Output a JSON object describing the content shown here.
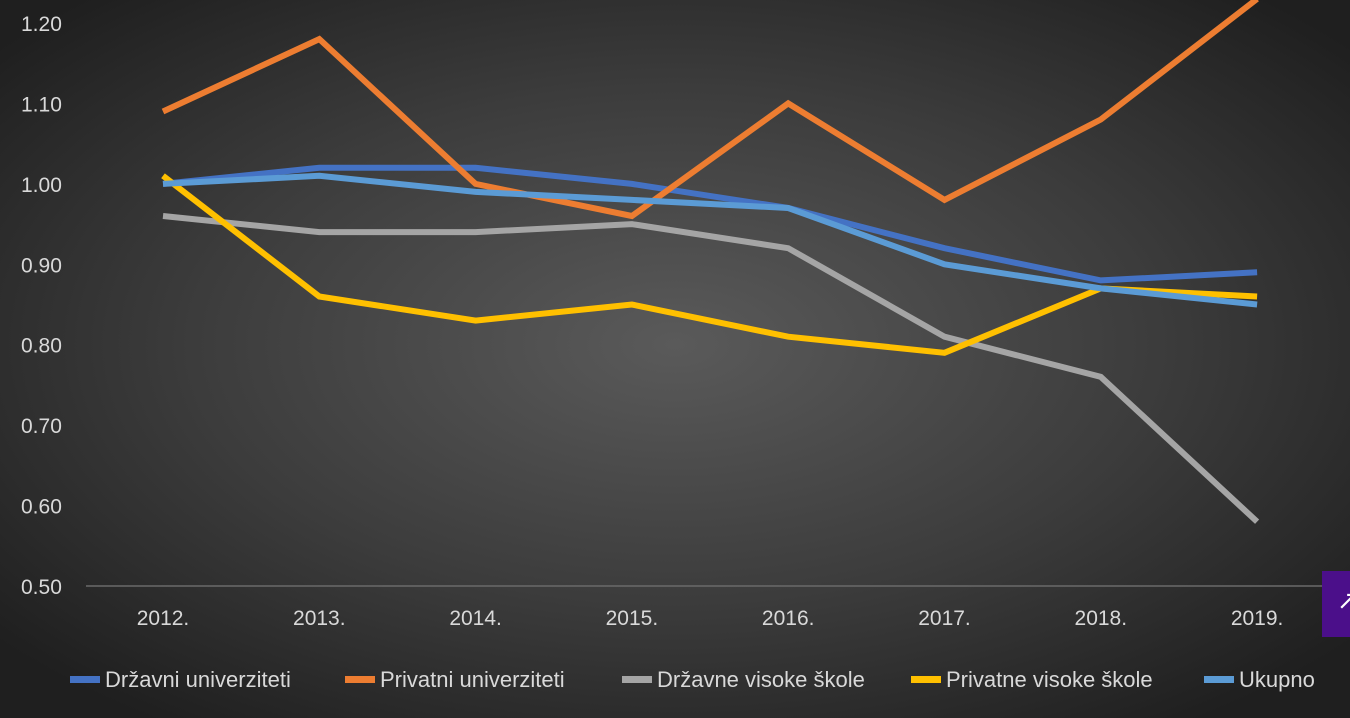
{
  "chart_data": {
    "type": "line",
    "title": "",
    "xlabel": "",
    "ylabel": "",
    "categories": [
      "2012.",
      "2013.",
      "2014.",
      "2015.",
      "2016.",
      "2017.",
      "2018.",
      "2019."
    ],
    "ylim": [
      0.5,
      1.2
    ],
    "yticks": [
      "1.20",
      "1.10",
      "1.00",
      "0.90",
      "0.80",
      "0.70",
      "0.60",
      "0.50"
    ],
    "ytick_values": [
      1.2,
      1.1,
      1.0,
      0.9,
      0.8,
      0.7,
      0.6,
      0.5
    ],
    "grid": false,
    "legend_position": "bottom",
    "series": [
      {
        "name": "Državni univerziteti",
        "color": "#4472c4",
        "values": [
          1.0,
          1.02,
          1.02,
          1.0,
          0.97,
          0.92,
          0.88,
          0.89
        ]
      },
      {
        "name": "Privatni univerziteti",
        "color": "#ed7d31",
        "values": [
          1.09,
          1.18,
          1.0,
          0.96,
          1.1,
          0.98,
          1.08,
          1.23
        ]
      },
      {
        "name": "Državne visoke škole",
        "color": "#a5a5a5",
        "values": [
          0.96,
          0.94,
          0.94,
          0.95,
          0.92,
          0.81,
          0.76,
          0.58
        ]
      },
      {
        "name": "Privatne visoke škole",
        "color": "#ffc000",
        "values": [
          1.01,
          0.86,
          0.83,
          0.85,
          0.81,
          0.79,
          0.87,
          0.86
        ]
      },
      {
        "name": "Ukupno",
        "color": "#5b9bd5",
        "values": [
          1.0,
          1.01,
          0.99,
          0.98,
          0.97,
          0.9,
          0.87,
          0.85
        ]
      }
    ]
  },
  "ui": {
    "scroll_top_icon": "arrow-up-icon",
    "scroll_top_glyph": "↑",
    "scroll_top_color": "#4b0f8a"
  }
}
